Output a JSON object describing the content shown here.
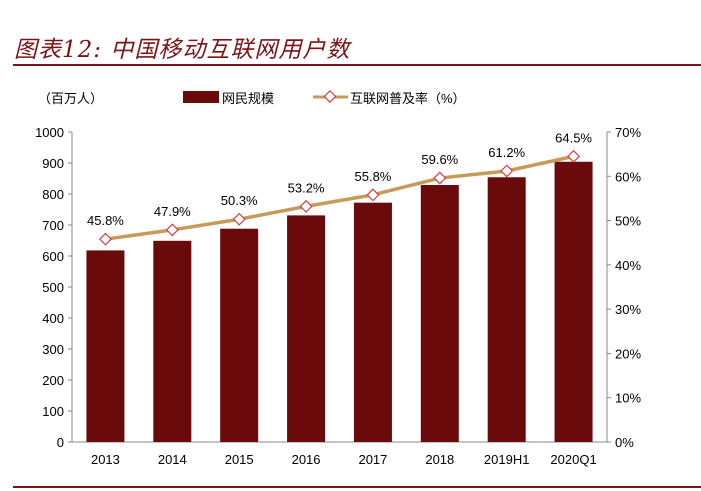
{
  "title": "图表12: 中国移动互联网用户数",
  "chart_data": {
    "type": "bar+line",
    "title": "图表12: 中国移动互联网用户数",
    "categories": [
      "2013",
      "2014",
      "2015",
      "2016",
      "2017",
      "2018",
      "2019H1",
      "2020Q1"
    ],
    "series": [
      {
        "name": "网民规模",
        "type": "bar",
        "axis": "left",
        "color": "#6b0a0a",
        "values": [
          618,
          649,
          688,
          731,
          772,
          829,
          854,
          904
        ]
      },
      {
        "name": "互联网普及率（%）",
        "type": "line",
        "axis": "right",
        "color": "#c89a5a",
        "marker_edge": "#d04040",
        "values": [
          45.8,
          47.9,
          50.3,
          53.2,
          55.8,
          59.6,
          61.2,
          64.5
        ],
        "data_labels": [
          "45.8%",
          "47.9%",
          "50.3%",
          "53.2%",
          "55.8%",
          "59.6%",
          "61.2%",
          "64.5%"
        ]
      }
    ],
    "ylabel_left": "（百万人）",
    "ylim_left": [
      0,
      1000
    ],
    "yticks_left": [
      "0",
      "100",
      "200",
      "300",
      "400",
      "500",
      "600",
      "700",
      "800",
      "900",
      "1000"
    ],
    "ylim_right": [
      0,
      70
    ],
    "yticks_right": [
      "0%",
      "10%",
      "20%",
      "30%",
      "40%",
      "50%",
      "60%",
      "70%"
    ],
    "grid": false,
    "legend_placement": "top"
  }
}
